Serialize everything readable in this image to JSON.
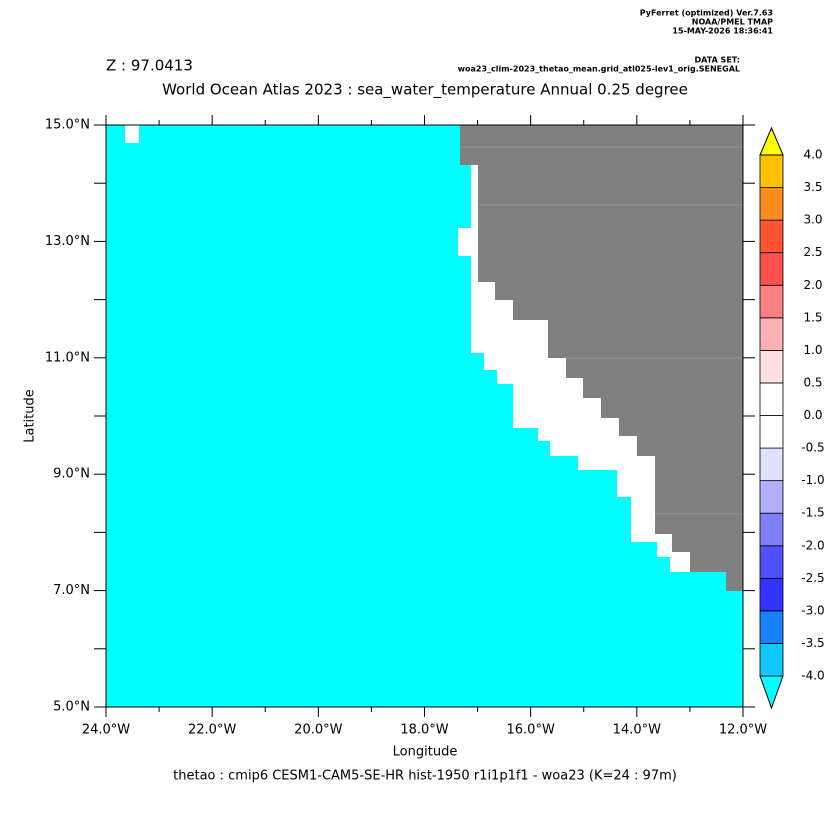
{
  "chart_data": {
    "type": "map",
    "header": [
      "PyFerret (optimized) Ver.7.63",
      "NOAA/PMEL TMAP",
      "15-MAY-2026 18:36:41"
    ],
    "dataset_label": "DATA SET:",
    "dataset": "woa23_clim-2023_thetao_mean.grid_atl025-lev1_orig.SENEGAL",
    "depth_label": "Z : 97.0413",
    "title": "World Ocean Atlas 2023 : sea_water_temperature Annual  0.25 degree",
    "xlabel": "Longitude",
    "ylabel": "Latitude",
    "footer": "thetao : cmip6 CESM1-CAM5-SE-HR hist-1950 r1i1p1f1 - woa23  (K=24 : 97m)",
    "xlim": [
      -24,
      -12
    ],
    "xticks": [
      {
        "value": -24,
        "label": "24.0°W"
      },
      {
        "value": -22,
        "label": "22.0°W"
      },
      {
        "value": -20,
        "label": "20.0°W"
      },
      {
        "value": -18,
        "label": "18.0°W"
      },
      {
        "value": -16,
        "label": "16.0°W"
      },
      {
        "value": -14,
        "label": "14.0°W"
      },
      {
        "value": -12,
        "label": "12.0°W"
      }
    ],
    "ylim": [
      5,
      15
    ],
    "yticks": [
      {
        "value": 5,
        "label": "5.0°N"
      },
      {
        "value": 7,
        "label": "7.0°N"
      },
      {
        "value": 9,
        "label": "9.0°N"
      },
      {
        "value": 11,
        "label": "11.0°N"
      },
      {
        "value": 13,
        "label": "13.0°N"
      },
      {
        "value": 15,
        "label": "15.0°N"
      }
    ],
    "colorbar": {
      "levels": [
        {
          "value": -4,
          "label": "-4.0"
        },
        {
          "value": -3.5,
          "label": "-3.5"
        },
        {
          "value": -3,
          "label": "-3.0"
        },
        {
          "value": -2.5,
          "label": "-2.5"
        },
        {
          "value": -2,
          "label": "-2.0"
        },
        {
          "value": -1.5,
          "label": "-1.5"
        },
        {
          "value": -1,
          "label": "-1.0"
        },
        {
          "value": -0.5,
          "label": "-0.5"
        },
        {
          "value": 0,
          "label": "0.0"
        },
        {
          "value": 0.5,
          "label": "0.5"
        },
        {
          "value": 1,
          "label": "1.0"
        },
        {
          "value": 1.5,
          "label": "1.5"
        },
        {
          "value": 2,
          "label": "2.0"
        },
        {
          "value": 2.5,
          "label": "2.5"
        },
        {
          "value": 3,
          "label": "3.0"
        },
        {
          "value": 3.5,
          "label": "3.5"
        },
        {
          "value": 4,
          "label": "4.0"
        }
      ],
      "colors": [
        "#00ffff",
        "#10c8ff",
        "#1a80ff",
        "#3333ff",
        "#5050ff",
        "#8080ff",
        "#b0b0ff",
        "#e0e0ff",
        "#ffffff",
        "#ffffff",
        "#ffe0e0",
        "#ffb0b0",
        "#ff8080",
        "#ff5050",
        "#ff5533",
        "#ff8c20",
        "#ffc000",
        "#ffff00"
      ]
    }
  }
}
